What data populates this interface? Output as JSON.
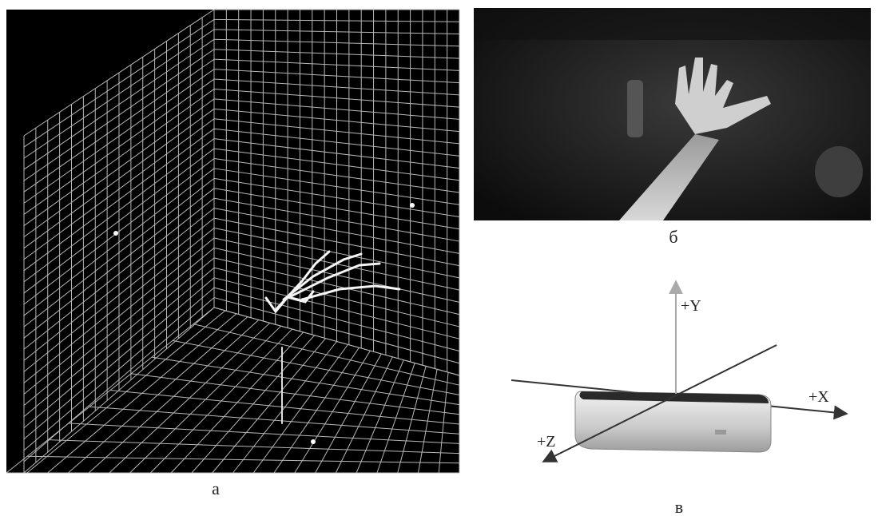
{
  "panels": [
    {
      "label": "а"
    },
    {
      "label": "б"
    },
    {
      "label": "в",
      "axes": [
        "+Y",
        "+X",
        "+Z"
      ]
    }
  ]
}
